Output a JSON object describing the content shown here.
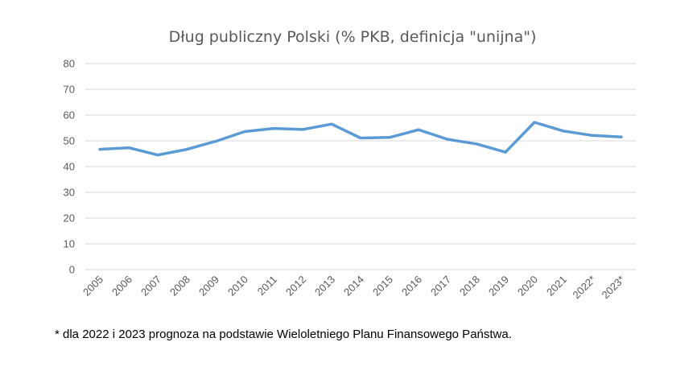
{
  "chart_data": {
    "type": "line",
    "title": "Dług publiczny Polski (% PKB, definicja \"unijna\")",
    "xlabel": "",
    "ylabel": "",
    "categories": [
      "2005",
      "2006",
      "2007",
      "2008",
      "2009",
      "2010",
      "2011",
      "2012",
      "2013",
      "2014",
      "2015",
      "2016",
      "2017",
      "2018",
      "2019",
      "2020",
      "2021",
      "2022*",
      "2023*"
    ],
    "series": [
      {
        "values": [
          46.7,
          47.3,
          44.5,
          46.7,
          49.8,
          53.6,
          54.8,
          54.4,
          56.5,
          51.1,
          51.3,
          54.3,
          50.6,
          48.8,
          45.6,
          57.2,
          53.8,
          52.1,
          51.5
        ]
      }
    ],
    "ylim": [
      0,
      80
    ],
    "yticks": [
      0,
      10,
      20,
      30,
      40,
      50,
      60,
      70,
      80
    ],
    "grid": true,
    "legend": "none",
    "line_color": "#5B9BD5"
  },
  "footnote": "* dla 2022 i 2023 prognoza na podstawie Wieloletniego Planu Finansowego Państwa."
}
